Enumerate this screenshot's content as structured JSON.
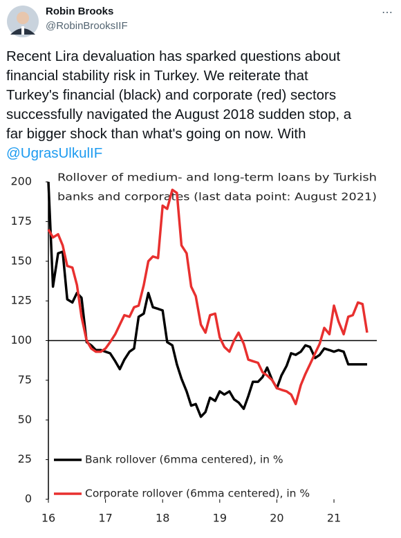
{
  "tweet": {
    "name": "Robin Brooks",
    "handle": "@RobinBrooksIIF",
    "more": "⋯",
    "lines": [
      "Recent Lira devaluation has sparked questions about",
      "financial stability risk in Turkey. We reiterate that",
      "Turkey's financial (black) and corporate (red) sectors",
      "successfully navigated the August 2018 sudden stop, a",
      "far bigger shock than what's going on now. With"
    ],
    "mention": "@UgrasUlkulIF"
  },
  "chart_data": {
    "type": "line",
    "title": [
      "Rollover of medium- and long-term loans by Turkish",
      "banks and corporates (last data point: August 2021)"
    ],
    "x": [
      16,
      16.08,
      16.17,
      16.25,
      16.33,
      16.42,
      16.5,
      16.58,
      16.67,
      16.75,
      16.83,
      16.92,
      17,
      17.08,
      17.17,
      17.25,
      17.33,
      17.42,
      17.5,
      17.58,
      17.67,
      17.75,
      17.83,
      17.92,
      18,
      18.08,
      18.17,
      18.25,
      18.33,
      18.42,
      18.5,
      18.58,
      18.67,
      18.75,
      18.83,
      18.92,
      19,
      19.08,
      19.17,
      19.25,
      19.33,
      19.42,
      19.5,
      19.58,
      19.67,
      19.75,
      19.83,
      19.92,
      20,
      20.08,
      20.17,
      20.25,
      20.33,
      20.42,
      20.5,
      20.58,
      20.67,
      20.75,
      20.83,
      20.92,
      21,
      21.08,
      21.17,
      21.25,
      21.33,
      21.42,
      21.5,
      21.58
    ],
    "series": [
      {
        "name": "Bank rollover (6mma centered), in %",
        "color": "#000000",
        "values": [
          200,
          134,
          155,
          156,
          126,
          124,
          130,
          127,
          99,
          97,
          94,
          94,
          93,
          92,
          87,
          82,
          88,
          93,
          95,
          115,
          117,
          130,
          121,
          120,
          119,
          99,
          97,
          85,
          76,
          68,
          59,
          60,
          52,
          55,
          64,
          62,
          68,
          66,
          68,
          63,
          61,
          57,
          65,
          74,
          74,
          77,
          83,
          75,
          70,
          78,
          84,
          92,
          91,
          93,
          97,
          96,
          89,
          91,
          95,
          94,
          93,
          94,
          93,
          85,
          85,
          85,
          85,
          85
        ]
      },
      {
        "name": "Corporate rollover (6mma centered), in %",
        "color": "#e8302f",
        "values": [
          170,
          165,
          167,
          160,
          147,
          146,
          135,
          115,
          100,
          95,
          93,
          93,
          95,
          99,
          104,
          110,
          116,
          115,
          121,
          122,
          135,
          150,
          153,
          152,
          185,
          183,
          195,
          193,
          160,
          155,
          134,
          128,
          110,
          105,
          116,
          117,
          102,
          96,
          93,
          100,
          105,
          98,
          88,
          87,
          86,
          80,
          78,
          75,
          70,
          69,
          68,
          66,
          60,
          72,
          79,
          85,
          92,
          98,
          108,
          104,
          122,
          112,
          104,
          115,
          116,
          124,
          123,
          105
        ]
      }
    ],
    "xlim": [
      16,
      21.75
    ],
    "xticks": [
      16,
      17,
      18,
      19,
      20,
      21
    ],
    "ylim": [
      0,
      200
    ],
    "yticks": [
      0,
      25,
      50,
      75,
      100,
      125,
      150,
      175,
      200
    ],
    "x_axis_crosses": 100
  }
}
